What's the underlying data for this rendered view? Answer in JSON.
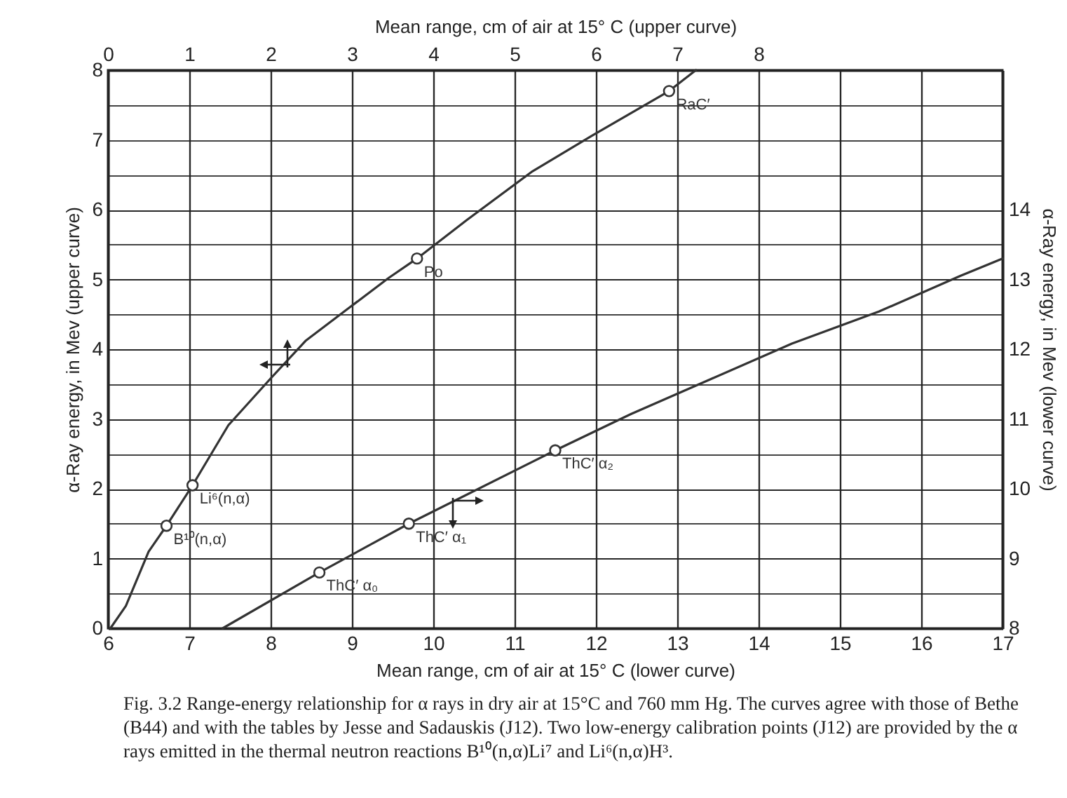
{
  "chart_data": {
    "type": "line",
    "xlabel": "Mean range, cm of air at 15° C (lower curve)",
    "x2label": "Mean range, cm of air at 15° C (upper curve)",
    "ylabel": "α-Ray energy, in Mev (upper curve)",
    "y2label": "α-Ray energy, in Mev (lower curve)",
    "xlim": [
      6,
      17
    ],
    "xticks": [
      6,
      7,
      8,
      9,
      10,
      11,
      12,
      13,
      14,
      15,
      16,
      17
    ],
    "x2lim": [
      0,
      11
    ],
    "x2ticks": [
      0,
      1,
      2,
      3,
      4,
      5,
      6,
      7,
      8,
      {
        "value": 9,
        "label": null
      },
      {
        "value": 10,
        "label": null
      },
      {
        "value": 11,
        "label": null
      }
    ],
    "ylim": [
      0,
      8
    ],
    "yticks": [
      0,
      {
        "value": 0.5,
        "label": null
      },
      1,
      {
        "value": 1.5,
        "label": null
      },
      2,
      {
        "value": 2.5,
        "label": null
      },
      3,
      {
        "value": 3.5,
        "label": null
      },
      4,
      {
        "value": 4.5,
        "label": null
      },
      5,
      {
        "value": 5.5,
        "label": null
      },
      6,
      {
        "value": 6.5,
        "label": null
      },
      7,
      {
        "value": 7.5,
        "label": null
      },
      8
    ],
    "y2lim": [
      8,
      16
    ],
    "y2ticks": [
      8,
      9,
      10,
      11,
      12,
      13,
      14
    ],
    "grid": true,
    "series": [
      {
        "type": "line",
        "axis": "x2",
        "marker": "none",
        "color": "#333333",
        "x": [
          0.03,
          0.22,
          0.5,
          0.72,
          1.04,
          1.48,
          2.0,
          2.43,
          2.95,
          3.45,
          3.8,
          4.41,
          5.22,
          5.95,
          6.9,
          7.23
        ],
        "values": [
          0,
          0.32,
          1.1,
          1.47,
          2.05,
          2.91,
          3.58,
          4.12,
          4.58,
          5.02,
          5.3,
          5.85,
          6.55,
          7.06,
          7.7,
          8
        ]
      },
      {
        "type": "line",
        "axis": "y2",
        "marker": "none",
        "color": "#333333",
        "x": [
          7.41,
          8.6,
          9.7,
          11.5,
          12.43,
          13.43,
          14.41,
          15.48,
          16.48,
          17
        ],
        "values": [
          8,
          8.8,
          9.5,
          10.55,
          11.07,
          11.58,
          12.08,
          12.54,
          13.05,
          13.3
        ]
      },
      {
        "type": "scatter",
        "axis": "x2",
        "marker": "circle",
        "name": "B¹⁰(n,α)",
        "color": "#333333",
        "x": [
          0.72
        ],
        "values": [
          1.47
        ]
      },
      {
        "type": "scatter",
        "axis": "x2",
        "marker": "circle",
        "name": "Li⁶(n,α)",
        "color": "#333333",
        "x": [
          1.04
        ],
        "values": [
          2.05
        ]
      },
      {
        "type": "scatter",
        "axis": "x2",
        "marker": "circle",
        "name": "Po",
        "color": "#333333",
        "x": [
          3.8
        ],
        "values": [
          5.3
        ]
      },
      {
        "type": "scatter",
        "axis": "x2",
        "marker": "circle",
        "name": "RaC′",
        "color": "#333333",
        "x": [
          6.9
        ],
        "values": [
          7.7
        ]
      },
      {
        "type": "scatter",
        "axis": "y2",
        "marker": "circle",
        "name": "ThC′ α₀",
        "color": "#333333",
        "x": [
          8.6
        ],
        "values": [
          8.8
        ]
      },
      {
        "type": "scatter",
        "axis": "y2",
        "marker": "circle",
        "name": "ThC′ α₁",
        "color": "#333333",
        "x": [
          9.7
        ],
        "values": [
          9.5
        ]
      },
      {
        "type": "scatter",
        "axis": "y2",
        "marker": "circle",
        "name": "ThC′ α₂",
        "color": "#333333",
        "x": [
          11.5
        ],
        "values": [
          10.55
        ]
      }
    ],
    "annotations": [
      "Fig. 3.2 Range-energy relationship for α rays in dry air at 15°C and 760 mm Hg. The curves agree with those of Bethe (B44) and with the tables by Jesse and Sadauskis (J12). Two low-energy calibration points (J12) are provided by the α rays emitted in the thermal neutron reactions B¹⁰(n,α)Li⁷ and Li⁶(n,α)H³."
    ]
  }
}
